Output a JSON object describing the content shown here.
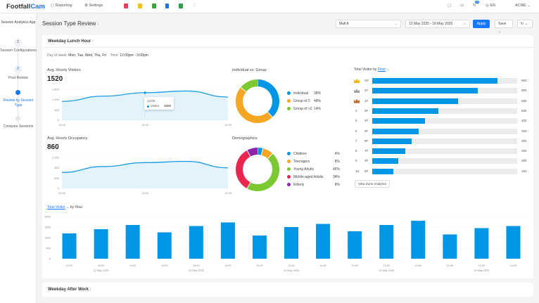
{
  "topbar": {
    "logo_a": "Footfall",
    "logo_b": "Cam",
    "reporting": "Reporting",
    "settings": "Settings",
    "notif_count": "20",
    "lang": "EN",
    "account": "ACME"
  },
  "sidebar": {
    "app": "Session Analytics App",
    "steps": [
      {
        "num": "1",
        "label": "Session Configurations"
      },
      {
        "num": "2",
        "label": "Post Review"
      },
      {
        "num": "",
        "label": "Review by Session Type"
      },
      {
        "num": "",
        "label": "Compare Sessions"
      }
    ]
  },
  "page": {
    "title": "Session Type Review",
    "site": "Mall A",
    "date_range": "12 May 2025 - 18 May 2025",
    "apply": "Apply",
    "save": "Save"
  },
  "session": {
    "title": "Weekday Lunch Hour",
    "dow_label": "Day of week:",
    "dow": "Mon, Tue, Wed, Thu, Fri",
    "time_label": "Time:",
    "time": "12:00pm - 3:00pm"
  },
  "next_session": {
    "title": "Weekday After Work"
  },
  "colors": {
    "accent": "#1677ff",
    "bar": "#0096e6",
    "area": "#e3f3fc"
  },
  "chart_data": [
    {
      "type": "area",
      "title": "Avg. Hourly Visitors",
      "value": "1520",
      "x": [
        "12:00",
        "12:30",
        "13:00",
        "13:30",
        "14:00"
      ],
      "y": [
        1100,
        1400,
        1600,
        1700,
        1350
      ],
      "yticks": [
        0,
        600,
        1200,
        1800
      ],
      "xticks": [
        "12:00",
        "13:00",
        "14:00"
      ],
      "ylim": [
        0,
        1800
      ],
      "tooltip": {
        "time": "13:00",
        "series": "Visitor",
        "value": "1600"
      }
    },
    {
      "type": "area",
      "title": "Avg. Hourly Occupancy",
      "value": "860",
      "x": [
        "12:00",
        "12:30",
        "13:00",
        "13:30",
        "14:00"
      ],
      "y": [
        620,
        850,
        1000,
        1050,
        800
      ],
      "yticks": [
        0,
        400,
        800,
        1200
      ],
      "xticks": [
        "12:00",
        "13:00",
        "14:00"
      ],
      "ylim": [
        0,
        1200
      ]
    },
    {
      "type": "pie",
      "title": "Individual vs. Group",
      "slices": [
        {
          "label": "Individual",
          "value": 38,
          "color": "#0096e6"
        },
        {
          "label": "Group of 2",
          "value": 48,
          "color": "#f5a623"
        },
        {
          "label": "Group of >2",
          "value": 14,
          "color": "#7cc832"
        }
      ]
    },
    {
      "type": "pie",
      "title": "Demographics",
      "slices": [
        {
          "label": "Children",
          "value": 4,
          "color": "#0096e6"
        },
        {
          "label": "Teenagers",
          "value": 8,
          "color": "#f5a623"
        },
        {
          "label": "Young Adults",
          "value": 46,
          "color": "#7cc832"
        },
        {
          "label": "Middle-aged Adults",
          "value": 34,
          "color": "#e8264f"
        },
        {
          "label": "Elderly",
          "value": 8,
          "color": "#8e24aa"
        }
      ]
    },
    {
      "type": "bar",
      "orientation": "horizontal",
      "title_prefix": "Total Visitor by",
      "dimension": "Floor",
      "max": 1100,
      "rows": [
        {
          "rank": "1",
          "floor": "GF",
          "value": 950,
          "medal": "#f5b400"
        },
        {
          "rank": "2",
          "floor": "2F",
          "value": 800,
          "medal": "#9e9e9e"
        },
        {
          "rank": "3",
          "floor": "1F",
          "value": 650,
          "medal": "#c0692b"
        },
        {
          "rank": "4",
          "floor": "5F",
          "value": 500
        },
        {
          "rank": "5",
          "floor": "4F",
          "value": 400
        },
        {
          "rank": "6",
          "floor": "8F",
          "value": 350
        },
        {
          "rank": "7",
          "floor": "9F",
          "value": 300
        },
        {
          "rank": "8",
          "floor": "7F",
          "value": 250
        },
        {
          "rank": "9",
          "floor": "3F",
          "value": 200
        },
        {
          "rank": "10",
          "floor": "6F",
          "value": 160
        }
      ],
      "button": "View Zone Analytics"
    },
    {
      "type": "bar",
      "metric": "Total Visitor",
      "suffix": "by Hour",
      "ylim": [
        0,
        2000
      ],
      "yticks": [
        0,
        500,
        1000,
        1500,
        2000
      ],
      "categories": [
        "12:00",
        "13:00",
        "14:00",
        "12:00",
        "13:00",
        "14:00",
        "12:00",
        "13:00",
        "14:00",
        "12:00",
        "13:00",
        "14:00",
        "12:00",
        "13:00",
        "14:00"
      ],
      "groups": [
        "12 May 2025",
        "13 May 2025",
        "14 May 2025",
        "15 May 2025",
        "16 May 2025"
      ],
      "values": [
        1200,
        1400,
        1600,
        1250,
        1550,
        1720,
        1100,
        1500,
        1650,
        1300,
        1600,
        1800,
        1150,
        1450,
        1550
      ]
    }
  ]
}
